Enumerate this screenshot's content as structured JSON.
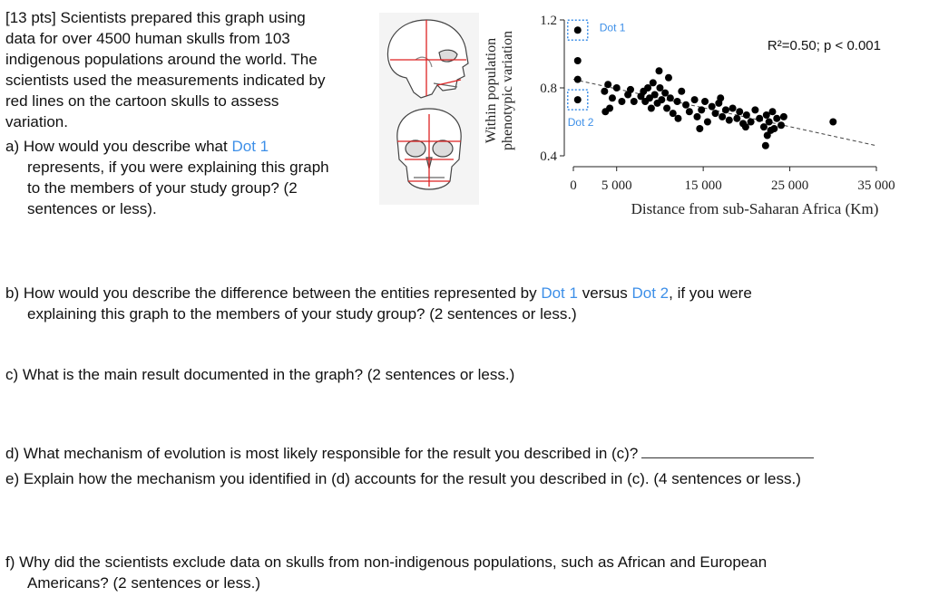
{
  "intro": {
    "lines": [
      "[13 pts] Scientists prepared this graph using",
      "data for over 4500 human skulls from 103",
      "indigenous populations around the world. The",
      "scientists used the measurements indicated by",
      "red lines on the cartoon skulls to assess",
      "variation."
    ]
  },
  "qa": {
    "line1_pre": "a) How would you describe what ",
    "dot1": "Dot 1",
    "line2": "represents, if you were explaining this graph",
    "line3": "to the members of your study group? (2",
    "line4": "sentences or less)."
  },
  "qb": {
    "line1_pre": "b) How would you describe the difference between the entities represented by ",
    "dot1": "Dot 1",
    "mid": " versus ",
    "dot2": "Dot 2",
    "line1_post": ", if you were",
    "line2": "explaining this graph to the members of your study group? (2 sentences or less.)"
  },
  "qc": {
    "text": "c) What is the main result documented in the graph? (2 sentences or less.)"
  },
  "qd": {
    "text": "d) What mechanism of evolution is most likely responsible for the result you described in (c)?"
  },
  "qe": {
    "text": "e) Explain how the mechanism you identified in (d) accounts for the result you described in (c). (4 sentences or less.)"
  },
  "qf": {
    "line1": "f) Why did the scientists exclude data on skulls from non-indigenous populations, such as African and European",
    "line2": "Americans? (2 sentences or less.)"
  },
  "chart_data": {
    "type": "scatter",
    "ylabel_line1": "Within population",
    "ylabel_line2": "phenotypic variation",
    "xlabel": "Distance from sub-Saharan Africa (Km)",
    "annotation": "R²=0.50; p < 0.001",
    "callouts": [
      "Dot 1",
      "Dot 2"
    ],
    "xlim": [
      0,
      35000
    ],
    "ylim": [
      0.4,
      1.2
    ],
    "xticks": [
      0,
      5000,
      15000,
      25000,
      35000
    ],
    "xtick_labels": [
      "0",
      "5 000",
      "15 000",
      "25 000",
      "35 000"
    ],
    "yticks": [
      0.4,
      0.8,
      1.2
    ],
    "ytick_labels": [
      "0.4",
      "0.8",
      "1.2"
    ],
    "trendline": [
      [
        0,
        0.85
      ],
      [
        35000,
        0.46
      ]
    ],
    "accent_color": "#3d8fe8",
    "points": [
      [
        500,
        1.14
      ],
      [
        500,
        0.96
      ],
      [
        500,
        0.85
      ],
      [
        500,
        0.73
      ],
      [
        3600,
        0.78
      ],
      [
        3700,
        0.66
      ],
      [
        4000,
        0.82
      ],
      [
        4500,
        0.74
      ],
      [
        4200,
        0.68
      ],
      [
        5000,
        0.8
      ],
      [
        5600,
        0.72
      ],
      [
        6300,
        0.76
      ],
      [
        7000,
        0.72
      ],
      [
        7800,
        0.75
      ],
      [
        8100,
        0.78
      ],
      [
        8300,
        0.72
      ],
      [
        8600,
        0.8
      ],
      [
        8800,
        0.74
      ],
      [
        9000,
        0.68
      ],
      [
        9200,
        0.83
      ],
      [
        9400,
        0.76
      ],
      [
        9700,
        0.71
      ],
      [
        10000,
        0.8
      ],
      [
        10200,
        0.73
      ],
      [
        10600,
        0.77
      ],
      [
        10800,
        0.68
      ],
      [
        11200,
        0.74
      ],
      [
        11500,
        0.65
      ],
      [
        12000,
        0.72
      ],
      [
        12500,
        0.78
      ],
      [
        13000,
        0.7
      ],
      [
        13400,
        0.66
      ],
      [
        14000,
        0.73
      ],
      [
        14300,
        0.63
      ],
      [
        14800,
        0.67
      ],
      [
        15200,
        0.72
      ],
      [
        15500,
        0.6
      ],
      [
        16000,
        0.69
      ],
      [
        16400,
        0.65
      ],
      [
        16800,
        0.71
      ],
      [
        17200,
        0.63
      ],
      [
        17600,
        0.67
      ],
      [
        18000,
        0.61
      ],
      [
        18400,
        0.68
      ],
      [
        18900,
        0.62
      ],
      [
        19200,
        0.66
      ],
      [
        19600,
        0.59
      ],
      [
        20000,
        0.64
      ],
      [
        20500,
        0.6
      ],
      [
        21000,
        0.67
      ],
      [
        21500,
        0.62
      ],
      [
        22000,
        0.57
      ],
      [
        22300,
        0.64
      ],
      [
        22600,
        0.6
      ],
      [
        23000,
        0.66
      ],
      [
        23200,
        0.56
      ],
      [
        23500,
        0.62
      ],
      [
        24000,
        0.58
      ],
      [
        24300,
        0.63
      ],
      [
        11000,
        0.86
      ],
      [
        12100,
        0.62
      ],
      [
        14600,
        0.56
      ],
      [
        22400,
        0.52
      ],
      [
        22200,
        0.46
      ],
      [
        22800,
        0.55
      ],
      [
        30000,
        0.6
      ],
      [
        9900,
        0.9
      ],
      [
        6600,
        0.79
      ],
      [
        17000,
        0.74
      ],
      [
        19900,
        0.57
      ]
    ]
  }
}
